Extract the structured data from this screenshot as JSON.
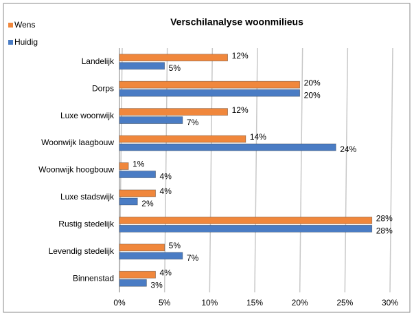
{
  "chart_data": {
    "type": "hbar",
    "title": "Verschilanalyse woonmilieus",
    "categories": [
      "Landelijk",
      "Dorps",
      "Luxe woonwijk",
      "Woonwijk laagbouw",
      "Woonwijk hoogbouw",
      "Luxe stadswijk",
      "Rustig stedelijk",
      "Levendig stedelijk",
      "Binnenstad"
    ],
    "series": [
      {
        "name": "Wens",
        "color": "#f0873c",
        "values": [
          12,
          20,
          12,
          14,
          1,
          4,
          28,
          5,
          4
        ],
        "value_labels": [
          "12%",
          "20%",
          "12%",
          "14%",
          "1%",
          "4%",
          "28%",
          "5%",
          "4%"
        ]
      },
      {
        "name": "Huidig",
        "color": "#4a7cc4",
        "values": [
          5,
          20,
          7,
          24,
          4,
          2,
          28,
          7,
          3
        ],
        "value_labels": [
          "5%",
          "20%",
          "7%",
          "24%",
          "4%",
          "2%",
          "28%",
          "7%",
          "3%"
        ]
      }
    ],
    "xlim": [
      0,
      30
    ],
    "xticks": [
      {
        "value": 0,
        "label": "0%"
      },
      {
        "value": 5,
        "label": "5%"
      },
      {
        "value": 10,
        "label": "10%"
      },
      {
        "value": 15,
        "label": "15%"
      },
      {
        "value": 20,
        "label": "20%"
      },
      {
        "value": 25,
        "label": "25%"
      },
      {
        "value": 30,
        "label": "30%"
      }
    ],
    "grid": true,
    "legend": "top-left"
  }
}
